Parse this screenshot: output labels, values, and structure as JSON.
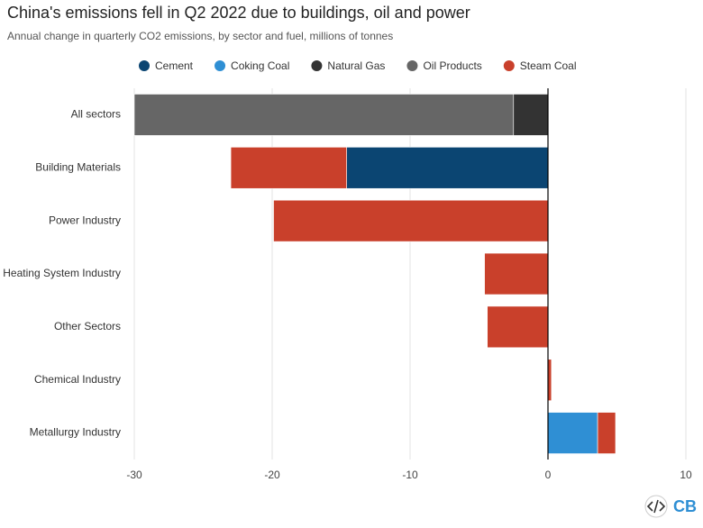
{
  "chart_data": {
    "type": "stacked-bar-horizontal",
    "title": "China's emissions fell in Q2 2022 due to buildings, oil and power",
    "subtitle": "Annual change in quarterly CO2 emissions, by sector and fuel, millions of tonnes",
    "categories": [
      "All sectors",
      "Building Materials",
      "Power Industry",
      "Heating System Industry",
      "Other Sectors",
      "Chemical Industry",
      "Metallurgy Industry"
    ],
    "series": [
      {
        "name": "Cement",
        "color": "#0b4572",
        "values": [
          null,
          -14.6,
          null,
          null,
          null,
          null,
          null
        ]
      },
      {
        "name": "Coking Coal",
        "color": "#2f8fd4",
        "values": [
          null,
          null,
          null,
          null,
          null,
          null,
          3.6
        ]
      },
      {
        "name": "Natural Gas",
        "color": "#333333",
        "values": [
          -2.5,
          null,
          null,
          null,
          null,
          null,
          null
        ]
      },
      {
        "name": "Oil Products",
        "color": "#666666",
        "values": [
          -27.5,
          null,
          null,
          null,
          null,
          null,
          null
        ]
      },
      {
        "name": "Steam Coal",
        "color": "#c9402b",
        "values": [
          null,
          -8.4,
          -19.9,
          -4.6,
          -4.4,
          0.25,
          1.3
        ]
      }
    ],
    "xlim": [
      -30,
      10
    ],
    "xticks": [
      -30,
      -20,
      -10,
      0,
      10
    ],
    "grid": true,
    "legend": "top"
  },
  "branding": {
    "logo": "CB"
  }
}
